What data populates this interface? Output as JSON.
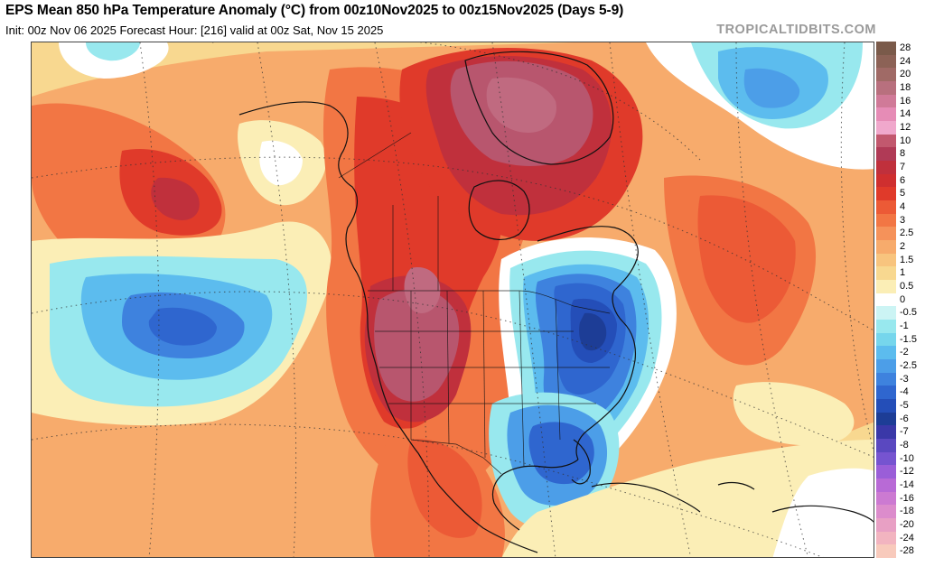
{
  "header": {
    "title": "EPS Mean 850 hPa Temperature Anomaly (°C) from 00z10Nov2025 to 00z15Nov2025 (Days 5-9)",
    "subtitle": "Init: 00z Nov 06 2025   Forecast Hour: [216]   valid at 00z Sat, Nov 15 2025",
    "site": "TROPICALTIDBITS.COM"
  },
  "colorbar": {
    "levels": [
      {
        "label": "28",
        "color": "#7a5a4a"
      },
      {
        "label": "24",
        "color": "#8c6256"
      },
      {
        "label": "20",
        "color": "#a06a66"
      },
      {
        "label": "18",
        "color": "#b8707e"
      },
      {
        "label": "16",
        "color": "#d07a98"
      },
      {
        "label": "14",
        "color": "#e68cb6"
      },
      {
        "label": "12",
        "color": "#f0a8cc"
      },
      {
        "label": "10",
        "color": "#c2586e"
      },
      {
        "label": "8",
        "color": "#b03a56"
      },
      {
        "label": "7",
        "color": "#c0303c"
      },
      {
        "label": "6",
        "color": "#cf2f2f"
      },
      {
        "label": "5",
        "color": "#e03a2a"
      },
      {
        "label": "4",
        "color": "#ec5a36"
      },
      {
        "label": "3",
        "color": "#f27644"
      },
      {
        "label": "2.5",
        "color": "#f5925a"
      },
      {
        "label": "2",
        "color": "#f7ab6c"
      },
      {
        "label": "1.5",
        "color": "#f8c47e"
      },
      {
        "label": "1",
        "color": "#f8d890"
      },
      {
        "label": "0.5",
        "color": "#fbeeb6"
      },
      {
        "label": "0",
        "color": "#ffffff"
      },
      {
        "label": "-0.5",
        "color": "#ccf4f4"
      },
      {
        "label": "-1",
        "color": "#98e8ee"
      },
      {
        "label": "-1.5",
        "color": "#76d6ec"
      },
      {
        "label": "-2",
        "color": "#5cbcee"
      },
      {
        "label": "-2.5",
        "color": "#4c9ee8"
      },
      {
        "label": "-3",
        "color": "#3e82de"
      },
      {
        "label": "-4",
        "color": "#2f66cf"
      },
      {
        "label": "-5",
        "color": "#244eb8"
      },
      {
        "label": "-6",
        "color": "#1d3d96"
      },
      {
        "label": "-7",
        "color": "#3a38a8"
      },
      {
        "label": "-8",
        "color": "#5a48c0"
      },
      {
        "label": "-10",
        "color": "#7654d0"
      },
      {
        "label": "-12",
        "color": "#9a5ed8"
      },
      {
        "label": "-14",
        "color": "#b86ad6"
      },
      {
        "label": "-16",
        "color": "#cc7ad2"
      },
      {
        "label": "-18",
        "color": "#dc8ccc"
      },
      {
        "label": "-20",
        "color": "#e8a0c4"
      },
      {
        "label": "-24",
        "color": "#f2b4c0"
      },
      {
        "label": "-28",
        "color": "#f8cabc"
      }
    ]
  },
  "map": {
    "palette": {
      "deep_red": "#c0303c",
      "magenta": "#b8566e",
      "red": "#e03a2a",
      "orange_red": "#ec5a36",
      "orange": "#f27644",
      "light_orange": "#f7ab6c",
      "tan": "#f8d890",
      "pale": "#fbeeb6",
      "white": "#ffffff",
      "light_cyan": "#98e8ee",
      "cyan": "#5cbcee",
      "blue": "#3e82de",
      "dark_blue": "#244eb8",
      "navy": "#1d3d96",
      "coast": "#111111",
      "grid": "#333333"
    }
  }
}
